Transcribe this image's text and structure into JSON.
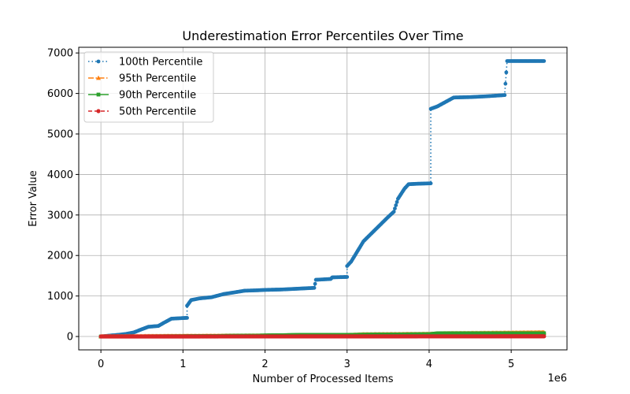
{
  "chart_data": {
    "type": "line",
    "title": "Underestimation Error Percentiles Over Time",
    "xlabel": "Number of Processed Items",
    "ylabel": "Error Value",
    "x_offset_label": "1e6",
    "xlim": [
      -0.27,
      5.68
    ],
    "ylim": [
      -330,
      7140
    ],
    "xticks": [
      0,
      1,
      2,
      3,
      4,
      5
    ],
    "yticks": [
      0,
      1000,
      2000,
      3000,
      4000,
      5000,
      6000,
      7000
    ],
    "grid": true,
    "legend_position": "upper left",
    "series": [
      {
        "name": "100th Percentile",
        "color": "#1f77b4",
        "linestyle": "dotted",
        "marker": "star",
        "x": [
          0,
          0.2,
          0.3,
          0.4,
          0.5,
          0.58,
          0.7,
          0.76,
          0.86,
          1.05,
          1.05,
          1.1,
          1.2,
          1.35,
          1.5,
          1.6,
          1.75,
          1.9,
          2.0,
          2.2,
          2.4,
          2.6,
          2.62,
          2.8,
          2.82,
          3.0,
          3.0,
          3.05,
          3.2,
          3.35,
          3.5,
          3.57,
          3.62,
          3.7,
          3.75,
          3.85,
          4.0,
          4.02,
          4.02,
          4.1,
          4.3,
          4.5,
          4.7,
          4.92,
          4.92,
          4.95,
          5.1,
          5.3,
          5.4
        ],
        "y": [
          0,
          40,
          60,
          100,
          180,
          240,
          260,
          330,
          440,
          460,
          760,
          900,
          940,
          970,
          1050,
          1080,
          1130,
          1140,
          1150,
          1160,
          1180,
          1200,
          1400,
          1420,
          1460,
          1470,
          1740,
          1850,
          2350,
          2650,
          2950,
          3080,
          3400,
          3650,
          3760,
          3770,
          3780,
          3780,
          5620,
          5680,
          5900,
          5910,
          5930,
          5960,
          5960,
          6800,
          6800,
          6800,
          6800
        ]
      },
      {
        "name": "95th Percentile",
        "color": "#ff7f0e",
        "linestyle": "dashdot",
        "marker": "triangle",
        "x": [
          0,
          1.0,
          2.0,
          3.0,
          3.2,
          4.0,
          4.2,
          5.0,
          5.4
        ],
        "y": [
          0,
          10,
          20,
          30,
          50,
          60,
          75,
          90,
          100
        ]
      },
      {
        "name": "90th Percentile",
        "color": "#2ca02c",
        "linestyle": "solid",
        "marker": "square",
        "x": [
          0,
          1.0,
          1.85,
          2.5,
          3.0,
          3.5,
          4.0,
          4.12,
          4.5,
          5.0,
          5.4
        ],
        "y": [
          0,
          5,
          20,
          40,
          40,
          50,
          55,
          80,
          80,
          80,
          80
        ]
      },
      {
        "name": "50th Percentile",
        "color": "#d62728",
        "linestyle": "dashed",
        "marker": "circle",
        "x": [
          0,
          1.0,
          2.0,
          3.0,
          4.0,
          5.0,
          5.4
        ],
        "y": [
          0,
          1,
          2,
          3,
          4,
          5,
          6
        ]
      }
    ]
  }
}
